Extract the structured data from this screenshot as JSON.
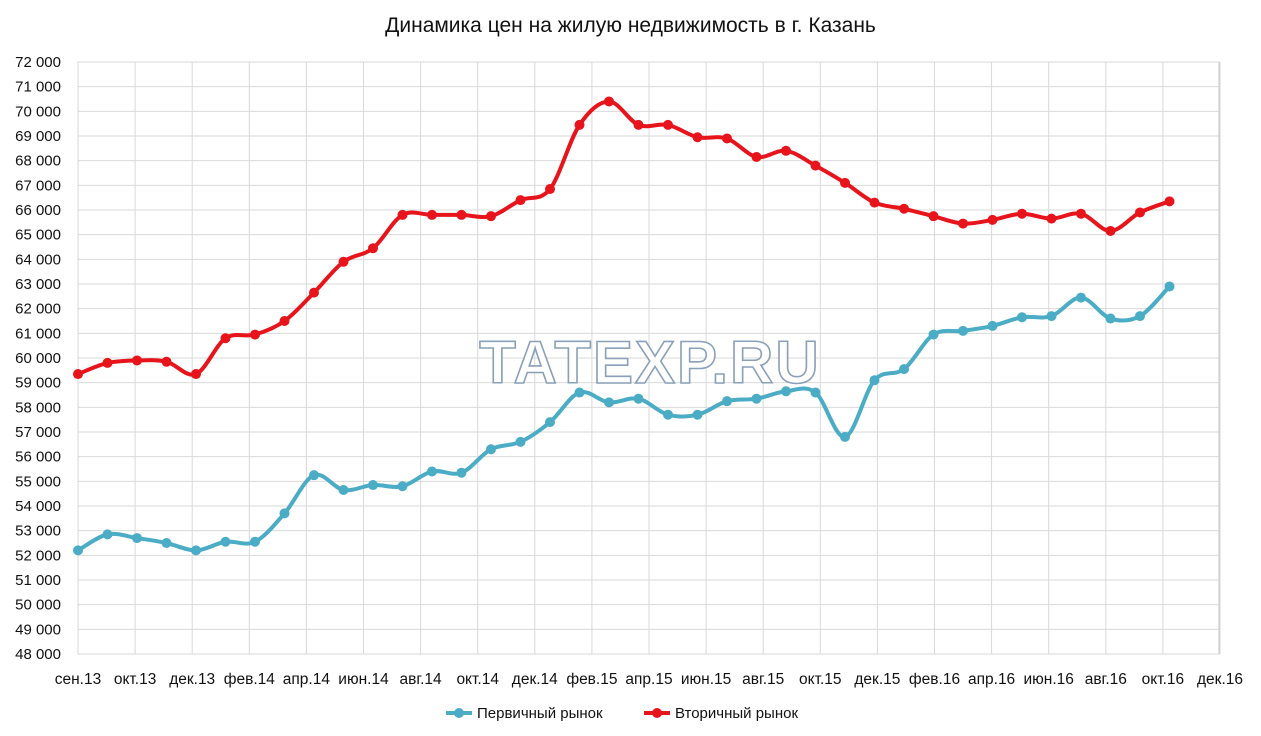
{
  "chart_data": {
    "type": "line",
    "title": "Динамика цен на жилую недвижимость в г. Казань",
    "xlabel": "",
    "ylabel": "",
    "ylim": [
      48000,
      72000
    ],
    "ytick_step": 1000,
    "grid": true,
    "legend": "bottom",
    "watermark": "TATEXP.RU",
    "x_tick_labels": [
      "сен.13",
      "окт.13",
      "дек.13",
      "фев.14",
      "апр.14",
      "июн.14",
      "авг.14",
      "окт.14",
      "дек.14",
      "фев.15",
      "апр.15",
      "июн.15",
      "авг.15",
      "окт.15",
      "дек.15",
      "фев.16",
      "апр.16",
      "июн.16",
      "авг.16",
      "окт.16",
      "дек.16"
    ],
    "y_tick_labels": [
      "48 000",
      "49 000",
      "50 000",
      "51 000",
      "52 000",
      "53 000",
      "54 000",
      "55 000",
      "56 000",
      "57 000",
      "58 000",
      "59 000",
      "60 000",
      "61 000",
      "62 000",
      "63 000",
      "64 000",
      "65 000",
      "66 000",
      "67 000",
      "68 000",
      "69 000",
      "70 000",
      "71 000",
      "72 000"
    ],
    "series": [
      {
        "name": "Первичный рынок",
        "color": "#4bacc6",
        "values": [
          52200,
          52850,
          52700,
          52500,
          52200,
          52550,
          52550,
          53700,
          55250,
          54650,
          54850,
          54800,
          55400,
          55350,
          56300,
          56600,
          57400,
          58600,
          58200,
          58350,
          57700,
          57700,
          58250,
          58350,
          58650,
          58600,
          56800,
          59100,
          59550,
          60950,
          61100,
          61300,
          61650,
          61700,
          62450,
          61600,
          61700,
          62900
        ]
      },
      {
        "name": "Вторичный рынок",
        "color": "#e8141c",
        "values": [
          59350,
          59800,
          59900,
          59850,
          59350,
          60800,
          60950,
          61500,
          62650,
          63900,
          64450,
          65800,
          65800,
          65800,
          65750,
          66400,
          66850,
          69450,
          70400,
          69450,
          69450,
          68950,
          68900,
          68150,
          68400,
          67800,
          67100,
          66300,
          66050,
          65750,
          65450,
          65600,
          65850,
          65650,
          65850,
          65150,
          65900,
          66350
        ]
      }
    ]
  }
}
